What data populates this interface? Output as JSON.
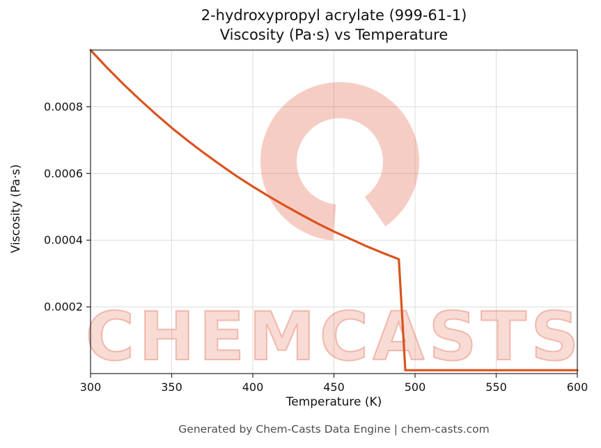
{
  "title": {
    "line1": "2-hydroxypropyl acrylate (999-61-1)",
    "line2": "Viscosity (Pa·s) vs Temperature"
  },
  "axes": {
    "xlabel": "Temperature (K)",
    "ylabel": "Viscosity (Pa·s)",
    "x_ticks": [
      300,
      350,
      400,
      450,
      500,
      550,
      600
    ],
    "x_tick_labels": [
      "300",
      "350",
      "400",
      "450",
      "500",
      "550",
      "600"
    ],
    "y_ticks": [
      0.0002,
      0.0004,
      0.0006,
      0.0008
    ],
    "y_tick_labels": [
      "0.0002",
      "0.0004",
      "0.0006",
      "0.0008"
    ]
  },
  "footer": "Generated by Chem-Casts Data Engine | chem-casts.com",
  "watermark": {
    "text": "CHEMCASTS",
    "color": "#e0593c"
  },
  "chart_data": {
    "type": "line",
    "title": "2-hydroxypropyl acrylate (999-61-1) Viscosity (Pa·s) vs Temperature",
    "xlabel": "Temperature (K)",
    "ylabel": "Viscosity (Pa·s)",
    "xlim": [
      300,
      600
    ],
    "ylim": [
      0,
      0.00097
    ],
    "grid": true,
    "line_color": "#d9531e",
    "series": [
      {
        "name": "viscosity",
        "x": [
          300,
          310,
          320,
          330,
          340,
          350,
          360,
          370,
          380,
          390,
          400,
          410,
          420,
          430,
          440,
          450,
          460,
          470,
          480,
          490,
          494,
          500,
          525,
          550,
          575,
          600
        ],
        "y": [
          0.00097,
          0.000918,
          0.000869,
          0.000823,
          0.000779,
          0.000737,
          0.000698,
          0.000661,
          0.000626,
          0.000592,
          0.000561,
          0.000531,
          0.000503,
          0.000476,
          0.00045,
          0.000426,
          0.000404,
          0.000382,
          0.000362,
          0.000343,
          1e-05,
          1e-05,
          1e-05,
          1e-05,
          1e-05,
          1e-05
        ]
      }
    ]
  }
}
